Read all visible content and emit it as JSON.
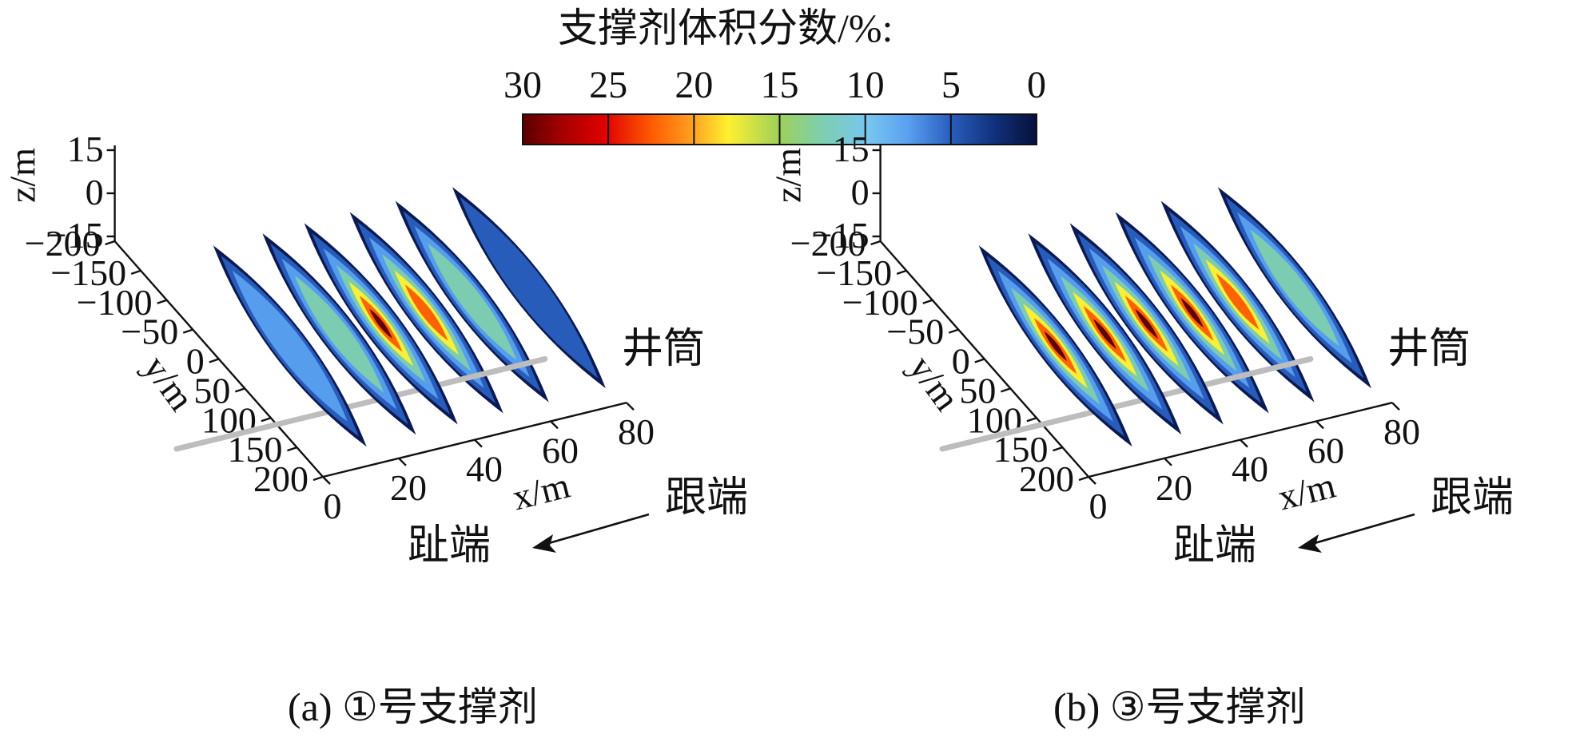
{
  "colorbar": {
    "title": "支撑剂体积分数/%:",
    "ticks": [
      "30",
      "25",
      "20",
      "15",
      "10",
      "5",
      "0"
    ]
  },
  "panels": [
    {
      "id": "a",
      "caption": "(a) ①号支撑剂",
      "axes": {
        "z_label": "z/m",
        "z_ticks": [
          "15",
          "0",
          "−15"
        ],
        "y_label": "y/m",
        "y_ticks": [
          "−200",
          "−150",
          "−100",
          "−50",
          "0",
          "50",
          "100",
          "150",
          "200"
        ],
        "x_label": "x/m",
        "x_ticks": [
          "0",
          "20",
          "40",
          "60",
          "80"
        ]
      },
      "labels": {
        "wellbore": "井筒",
        "heel": "跟端",
        "toe": "趾端"
      },
      "fractures": [
        {
          "x": 17,
          "peak_percent": 10
        },
        {
          "x": 30,
          "peak_percent": 15
        },
        {
          "x": 41,
          "peak_percent": 30
        },
        {
          "x": 53,
          "peak_percent": 22
        },
        {
          "x": 65,
          "peak_percent": 12
        },
        {
          "x": 80,
          "peak_percent": 5
        }
      ]
    },
    {
      "id": "b",
      "caption": "(b) ③号支撑剂",
      "axes": {
        "z_label": "z/m",
        "z_ticks": [
          "15",
          "0",
          "−15"
        ],
        "y_label": "y/m",
        "y_ticks": [
          "−200",
          "−150",
          "−100",
          "−50",
          "0",
          "50",
          "100",
          "150",
          "200"
        ],
        "x_label": "x/m",
        "x_ticks": [
          "0",
          "20",
          "40",
          "60",
          "80"
        ]
      },
      "labels": {
        "wellbore": "井筒",
        "heel": "跟端",
        "toe": "趾端"
      },
      "fractures": [
        {
          "x": 17,
          "peak_percent": 28
        },
        {
          "x": 30,
          "peak_percent": 30
        },
        {
          "x": 41,
          "peak_percent": 30
        },
        {
          "x": 53,
          "peak_percent": 28
        },
        {
          "x": 65,
          "peak_percent": 27
        },
        {
          "x": 80,
          "peak_percent": 12
        }
      ]
    }
  ]
}
